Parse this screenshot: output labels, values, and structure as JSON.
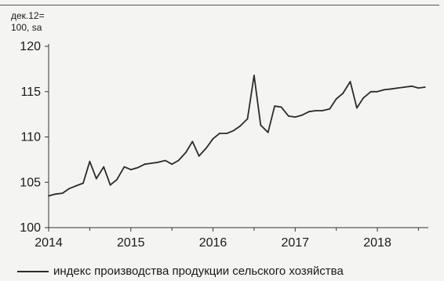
{
  "chart_data": {
    "type": "line",
    "unit_label_line1": "дек.12=",
    "unit_label_line2": "100, sa",
    "ylim": [
      100,
      120
    ],
    "y_ticks": [
      "100",
      "105",
      "110",
      "115",
      "120"
    ],
    "xlim": [
      2014.0,
      2018.62
    ],
    "x_ticks": [
      "2014",
      "2015",
      "2016",
      "2017",
      "2018"
    ],
    "series": [
      {
        "name": "индекс производства продукции сельского хозяйства",
        "color": "#2b2b2b",
        "x": [
          2014.0,
          2014.08,
          2014.17,
          2014.25,
          2014.33,
          2014.42,
          2014.5,
          2014.58,
          2014.67,
          2014.75,
          2014.83,
          2014.92,
          2015.0,
          2015.08,
          2015.17,
          2015.25,
          2015.33,
          2015.42,
          2015.5,
          2015.58,
          2015.67,
          2015.75,
          2015.83,
          2015.92,
          2016.0,
          2016.08,
          2016.17,
          2016.25,
          2016.33,
          2016.42,
          2016.5,
          2016.58,
          2016.67,
          2016.75,
          2016.83,
          2016.92,
          2017.0,
          2017.08,
          2017.17,
          2017.25,
          2017.33,
          2017.42,
          2017.5,
          2017.58,
          2017.67,
          2017.75,
          2017.83,
          2017.92,
          2018.0,
          2018.08,
          2018.17,
          2018.25,
          2018.33,
          2018.42,
          2018.5,
          2018.58
        ],
        "y": [
          103.5,
          103.7,
          103.8,
          104.3,
          104.6,
          104.9,
          107.3,
          105.4,
          106.7,
          104.7,
          105.3,
          106.7,
          106.4,
          106.6,
          107.0,
          107.1,
          107.2,
          107.4,
          107.0,
          107.4,
          108.3,
          109.5,
          107.9,
          108.8,
          109.8,
          110.4,
          110.4,
          110.7,
          111.2,
          112.0,
          116.8,
          111.3,
          110.5,
          113.4,
          113.3,
          112.3,
          112.2,
          112.4,
          112.8,
          112.9,
          112.9,
          113.1,
          114.2,
          114.8,
          116.1,
          113.2,
          114.3,
          115.0,
          115.0,
          115.2,
          115.3,
          115.4,
          115.5,
          115.6,
          115.4,
          115.5
        ]
      }
    ]
  }
}
